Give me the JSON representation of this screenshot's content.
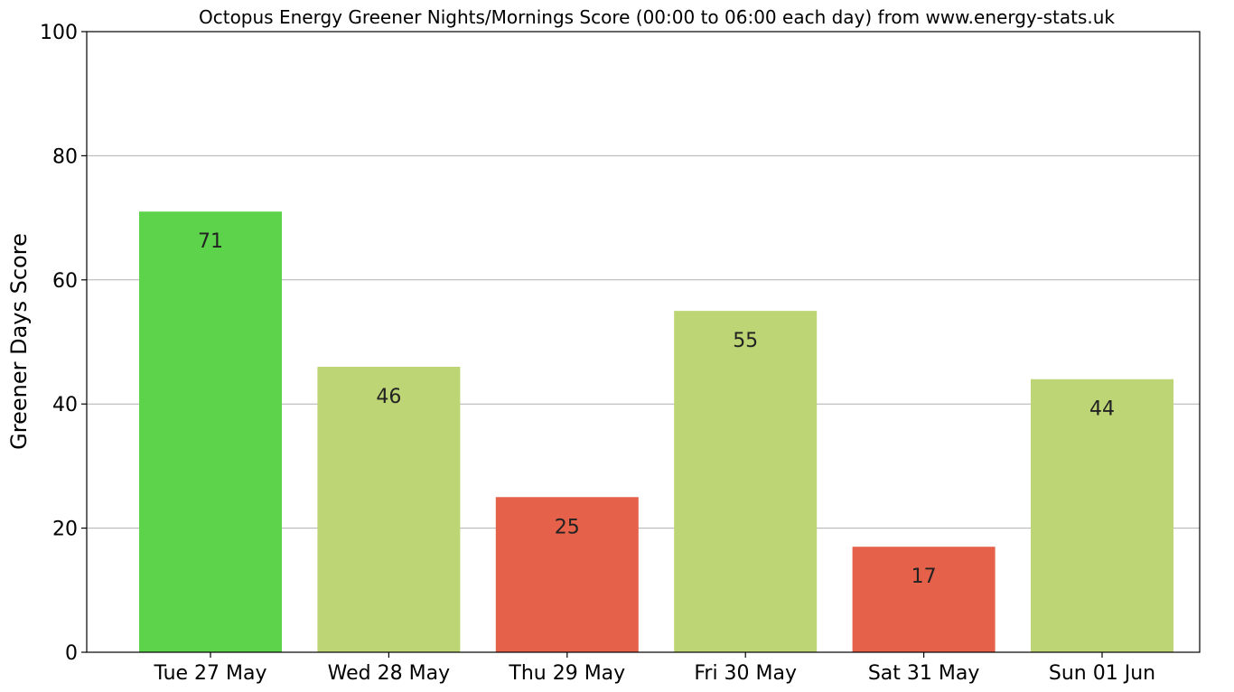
{
  "chart_data": {
    "type": "bar",
    "title": "Octopus Energy Greener Nights/Mornings Score (00:00 to 06:00 each day) from www.energy-stats.uk",
    "xlabel": "",
    "ylabel": "Greener Days Score",
    "ylim": [
      0,
      100
    ],
    "yticks": [
      "0",
      "20",
      "40",
      "60",
      "80",
      "100"
    ],
    "grid": "horizontal",
    "categories": [
      "Tue 27 May",
      "Wed 28 May",
      "Thu 29 May",
      "Fri 30 May",
      "Sat 31 May",
      "Sun 01 Jun"
    ],
    "values": [
      71,
      46,
      25,
      55,
      17,
      44
    ],
    "value_labels": [
      "71",
      "46",
      "25",
      "55",
      "17",
      "44"
    ],
    "colors": [
      "#5cd34a",
      "#bdd574",
      "#e5614a",
      "#bdd574",
      "#e5614a",
      "#bdd574"
    ]
  }
}
